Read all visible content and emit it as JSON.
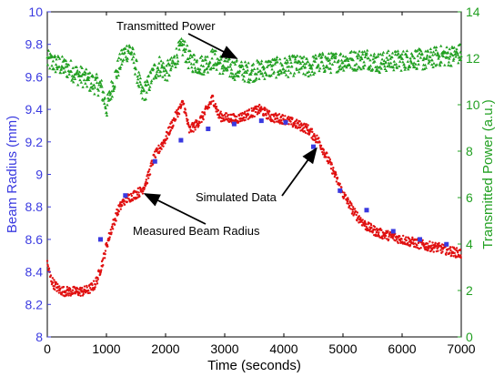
{
  "chart_data": {
    "type": "scatter",
    "x_axis": {
      "label": "Time (seconds)",
      "range": [
        0,
        7000
      ],
      "ticks": [
        "0",
        "1000",
        "2000",
        "3000",
        "4000",
        "5000",
        "6000",
        "7000"
      ]
    },
    "y_axis_left": {
      "label": "Beam Radius (mm)",
      "range": [
        8,
        10
      ],
      "ticks": [
        "8",
        "8.2",
        "8.4",
        "8.6",
        "8.8",
        "9",
        "9.2",
        "9.4",
        "9.6",
        "9.8",
        "10"
      ],
      "color": "#3a3ae0"
    },
    "y_axis_right": {
      "label": "Transmitted Power (a.u.)",
      "range": [
        0,
        14
      ],
      "ticks": [
        "0",
        "2",
        "4",
        "6",
        "8",
        "10",
        "12",
        "14"
      ],
      "color": "#22a022"
    },
    "grid": false,
    "series": {
      "measured": {
        "axis": "left",
        "color": "#e01010",
        "marker": "dot",
        "x": [
          0,
          50,
          100,
          200,
          300,
          400,
          500,
          600,
          700,
          800,
          850,
          900,
          950,
          1000,
          1100,
          1200,
          1300,
          1400,
          1500,
          1600,
          1700,
          1800,
          1900,
          2000,
          2100,
          2200,
          2300,
          2400,
          2500,
          2600,
          2700,
          2800,
          2900,
          3000,
          3200,
          3400,
          3600,
          3800,
          4000,
          4200,
          4400,
          4600,
          4800,
          5000,
          5200,
          5400,
          5600,
          5800,
          6000,
          6200,
          6400,
          6600,
          6800,
          7000
        ],
        "y": [
          8.45,
          8.37,
          8.33,
          8.29,
          8.28,
          8.28,
          8.28,
          8.28,
          8.29,
          8.32,
          8.36,
          8.42,
          8.48,
          8.56,
          8.68,
          8.78,
          8.84,
          8.86,
          8.88,
          8.9,
          8.98,
          9.1,
          9.16,
          9.22,
          9.3,
          9.38,
          9.44,
          9.27,
          9.3,
          9.34,
          9.4,
          9.47,
          9.36,
          9.35,
          9.34,
          9.37,
          9.4,
          9.35,
          9.34,
          9.31,
          9.28,
          9.2,
          9.05,
          8.88,
          8.76,
          8.68,
          8.64,
          8.62,
          8.6,
          8.58,
          8.56,
          8.55,
          8.53,
          8.51
        ]
      },
      "simulated": {
        "axis": "left",
        "color": "#3a3ae0",
        "marker": "square",
        "x": [
          900,
          1320,
          1820,
          2260,
          2720,
          3160,
          3620,
          4030,
          4500,
          4950,
          5400,
          5850,
          6300,
          6750
        ],
        "y": [
          8.6,
          8.87,
          9.08,
          9.21,
          9.28,
          9.31,
          9.33,
          9.32,
          9.17,
          8.9,
          8.78,
          8.65,
          8.6,
          8.57
        ]
      },
      "transmitted_power": {
        "axis": "right",
        "color": "#22a022",
        "marker": "triangle",
        "x": [
          0,
          100,
          200,
          300,
          400,
          500,
          600,
          700,
          800,
          900,
          950,
          1000,
          1100,
          1200,
          1300,
          1400,
          1500,
          1600,
          1700,
          1800,
          1900,
          2000,
          2100,
          2200,
          2300,
          2400,
          2500,
          2600,
          2700,
          2800,
          3000,
          3200,
          3400,
          3600,
          3800,
          4000,
          4200,
          4400,
          4600,
          4800,
          5000,
          5200,
          5400,
          5600,
          5800,
          6000,
          6200,
          6400,
          6600,
          6800,
          7000
        ],
        "y": [
          11.9,
          11.8,
          11.7,
          11.6,
          11.5,
          11.3,
          11.2,
          11.0,
          10.9,
          10.8,
          10.4,
          9.8,
          10.8,
          11.6,
          12.2,
          12.4,
          11.6,
          10.4,
          10.8,
          11.4,
          11.7,
          11.4,
          11.6,
          12.2,
          12.5,
          11.9,
          11.8,
          11.7,
          11.8,
          12.0,
          11.6,
          11.5,
          11.4,
          11.5,
          11.6,
          11.6,
          11.7,
          11.6,
          11.8,
          11.8,
          11.9,
          11.9,
          12.0,
          11.8,
          11.9,
          11.9,
          12.0,
          11.9,
          12.1,
          12.1,
          12.2
        ]
      }
    },
    "annotations": [
      {
        "text": "Transmitted Power",
        "points_to": "transmitted_power",
        "at_x": 3200,
        "at_y_right": 12.0
      },
      {
        "text": "Simulated Data",
        "points_to": "simulated",
        "at_x": 4550,
        "at_y_left": 9.16
      },
      {
        "text": "Measured Beam Radius",
        "points_to": "measured",
        "at_x": 1650,
        "at_y_left": 8.88
      }
    ]
  }
}
